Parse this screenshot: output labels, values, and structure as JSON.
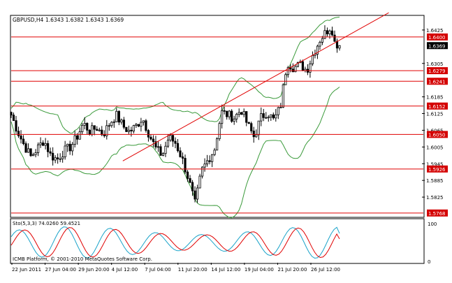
{
  "header": {
    "symbol_timeframe": "GBPUSD,H4",
    "ohlc_values": "1.6343 1.6382 1.6343 1.6369",
    "indicator_label": "Sto(5,3,3) 74.0260 59.4521",
    "copyright": "ICMB Platform, © 2001-2010 MetaQuotes Software Corp."
  },
  "colors": {
    "candle": "#000000",
    "bollinger": "#3a9a3a",
    "hline": "#e00000",
    "trendline": "#e00000",
    "stoch_main": "#1aa3c9",
    "stoch_signal": "#e00000",
    "label_box": "#d40000",
    "current_box": "#000000"
  },
  "price_axis": {
    "ticks": [
      "1.6425",
      "1.6305",
      "1.6185",
      "1.6125",
      "1.6065",
      "1.6005",
      "1.5945",
      "1.5885",
      "1.5825"
    ]
  },
  "stoch_axis": {
    "ticks": [
      "100",
      "0"
    ]
  },
  "time_axis": {
    "labels": [
      "22 Jun 2011",
      "27 Jun 04:00",
      "29 Jun 20:00",
      "4 Jul 12:00",
      "7 Jul 04:00",
      "11 Jul 20:00",
      "14 Jul 12:00",
      "19 Jul 04:00",
      "21 Jul 20:00",
      "26 Jul 12:00"
    ]
  },
  "level_labels": {
    "current": "1.6369",
    "levels": [
      "1.6400",
      "1.6279",
      "1.6241",
      "1.6152",
      "1.6050",
      "1.5926",
      "1.5768"
    ]
  },
  "chart_data": {
    "type": "candlestick",
    "symbol": "GBPUSD",
    "timeframe": "H4",
    "ylim": [
      1.5755,
      1.6475
    ],
    "horizontal_levels": [
      1.64,
      1.6279,
      1.6241,
      1.6152,
      1.605,
      1.5926,
      1.5768
    ],
    "current_price": 1.6369,
    "trendline": {
      "start": [
        0.34,
        1.5955
      ],
      "end": [
        1.15,
        1.6487
      ]
    },
    "close_path": [
      [
        0.0,
        1.612
      ],
      [
        0.02,
        1.606
      ],
      [
        0.04,
        1.601
      ],
      [
        0.06,
        1.597
      ],
      [
        0.08,
        1.6
      ],
      [
        0.1,
        1.603
      ],
      [
        0.12,
        1.5975
      ],
      [
        0.14,
        1.596
      ],
      [
        0.16,
        1.599
      ],
      [
        0.18,
        1.6005
      ],
      [
        0.2,
        1.604
      ],
      [
        0.22,
        1.609
      ],
      [
        0.24,
        1.606
      ],
      [
        0.26,
        1.6075
      ],
      [
        0.28,
        1.605
      ],
      [
        0.3,
        1.609
      ],
      [
        0.32,
        1.612
      ],
      [
        0.34,
        1.608
      ],
      [
        0.36,
        1.606
      ],
      [
        0.38,
        1.608
      ],
      [
        0.4,
        1.611
      ],
      [
        0.42,
        1.605
      ],
      [
        0.44,
        1.6
      ],
      [
        0.46,
        1.5975
      ],
      [
        0.48,
        1.604
      ],
      [
        0.5,
        1.602
      ],
      [
        0.52,
        1.5965
      ],
      [
        0.54,
        1.589
      ],
      [
        0.56,
        1.58
      ],
      [
        0.58,
        1.592
      ],
      [
        0.6,
        1.596
      ],
      [
        0.62,
        1.6
      ],
      [
        0.64,
        1.613
      ],
      [
        0.66,
        1.612
      ],
      [
        0.68,
        1.611
      ],
      [
        0.7,
        1.614
      ],
      [
        0.72,
        1.6085
      ],
      [
        0.74,
        1.604
      ],
      [
        0.76,
        1.611
      ],
      [
        0.78,
        1.613
      ],
      [
        0.8,
        1.61
      ],
      [
        0.82,
        1.615
      ],
      [
        0.84,
        1.631
      ],
      [
        0.86,
        1.629
      ],
      [
        0.88,
        1.63
      ],
      [
        0.9,
        1.628
      ],
      [
        0.92,
        1.634
      ],
      [
        0.94,
        1.639
      ],
      [
        0.96,
        1.642
      ],
      [
        0.975,
        1.644
      ],
      [
        0.985,
        1.638
      ],
      [
        1.0,
        1.6369
      ]
    ],
    "stochastic": {
      "params": "5,3,3",
      "main": 74.026,
      "signal": 59.4521,
      "ylim": [
        0,
        100
      ]
    }
  }
}
